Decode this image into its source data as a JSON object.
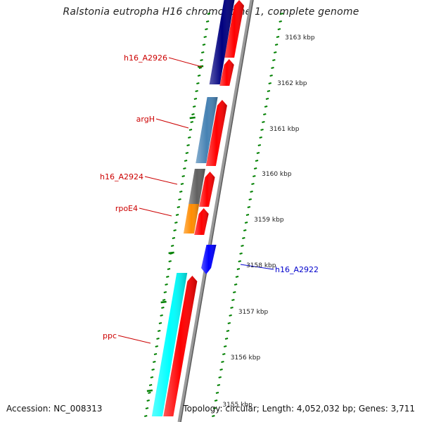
{
  "title": "Ralstonia eutropha H16 chromosome 1, complete genome",
  "footer": {
    "accession": "Accession: NC_008313",
    "summary": "Topology: circular; Length: 4,052,032 bp; Genes: 3,711"
  },
  "scale": {
    "ticks": [
      {
        "label": "3163 kbp"
      },
      {
        "label": "3162 kbp"
      },
      {
        "label": "3161 kbp"
      },
      {
        "label": "3160 kbp"
      },
      {
        "label": "3159 kbp"
      },
      {
        "label": "3158 kbp"
      },
      {
        "label": "3157 kbp"
      },
      {
        "label": "3156 kbp"
      },
      {
        "label": "3155 kbp"
      }
    ]
  },
  "genes": [
    {
      "label": "h16_A2926",
      "color": "#00007f",
      "strand": "forward"
    },
    {
      "label": "argH",
      "color": "#4682b4",
      "strand": "forward"
    },
    {
      "label": "h16_A2924",
      "color": "#606060",
      "strand": "forward"
    },
    {
      "label": "rpoE4",
      "color": "#ff8c00",
      "strand": "forward"
    },
    {
      "label": "h16_A2922",
      "color": "#0000ff",
      "strand": "reverse"
    },
    {
      "label": "ppc",
      "color": "#00ffff",
      "strand": "forward"
    }
  ],
  "colors": {
    "label_forward": "#cc0000",
    "label_reverse": "#0000cc",
    "cds_track": "#ff0000",
    "backbone": "#808080",
    "gc_ticks": "#008000"
  }
}
